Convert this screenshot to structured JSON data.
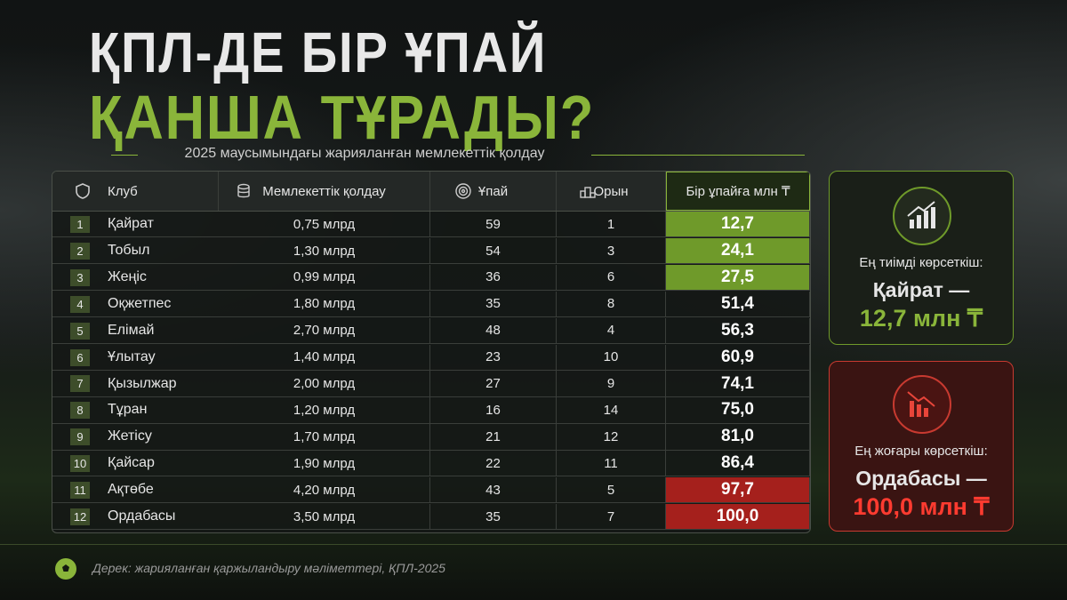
{
  "title_line1": "ҚПЛ-ДЕ БІР ҰПАЙ",
  "title_line2": "ҚАНША ТҰРАДЫ?",
  "subtitle": "2025 маусымындағы жарияланған мемлекеттік қолдау",
  "table": {
    "headers": [
      "Клуб",
      "Мемлекеттік қолдау",
      "Ұпай",
      "Орын",
      "Бір ұпайға млн ₸"
    ],
    "rows": [
      {
        "rank": 1,
        "club": "Қайрат",
        "funding": "0,75 млрд",
        "points": 59,
        "place": 1,
        "cost": "12,7",
        "color": "#6f9a2a"
      },
      {
        "rank": 2,
        "club": "Тобыл",
        "funding": "1,30 млрд",
        "points": 54,
        "place": 3,
        "cost": "24,1",
        "color": "#6f9a2a"
      },
      {
        "rank": 3,
        "club": "Жеңіс",
        "funding": "0,99 млрд",
        "points": 36,
        "place": 6,
        "cost": "27,5",
        "color": "#6f9a2a"
      },
      {
        "rank": 4,
        "club": "Оқжетпес",
        "funding": "1,80 млрд",
        "points": 35,
        "place": 8,
        "cost": "51,4"
      },
      {
        "rank": 5,
        "club": "Елімай",
        "funding": "2,70 млрд",
        "points": 48,
        "place": 4,
        "cost": "56,3"
      },
      {
        "rank": 6,
        "club": "Ұлытау",
        "funding": "1,40 млрд",
        "points": 23,
        "place": 10,
        "cost": "60,9"
      },
      {
        "rank": 7,
        "club": "Қызылжар",
        "funding": "2,00 млрд",
        "points": 27,
        "place": 9,
        "cost": "74,1"
      },
      {
        "rank": 8,
        "club": "Тұран",
        "funding": "1,20 млрд",
        "points": 16,
        "place": 14,
        "cost": "75,0"
      },
      {
        "rank": 9,
        "club": "Жетісу",
        "funding": "1,70 млрд",
        "points": 21,
        "place": 12,
        "cost": "81,0"
      },
      {
        "rank": 10,
        "club": "Қайсар",
        "funding": "1,90 млрд",
        "points": 22,
        "place": 11,
        "cost": "86,4"
      },
      {
        "rank": 11,
        "club": "Ақтөбе",
        "funding": "4,20 млрд",
        "points": 43,
        "place": 5,
        "cost": "97,7",
        "color": "#a5201c"
      },
      {
        "rank": 12,
        "club": "Ордабасы",
        "funding": "3,50 млрд",
        "points": 35,
        "place": 7,
        "cost": "100,0",
        "color": "#a5201c"
      }
    ]
  },
  "best_card": {
    "label": "Ең тиімді көрсеткіш:",
    "line1": "Қайрат —",
    "line2": "12,7 млн ₸"
  },
  "worst_card": {
    "label": "Ең жоғары көрсеткіш:",
    "line1": "Ордабасы —",
    "line2": "100,0 млн ₸"
  },
  "source": "Дерек: жарияланған қаржыландыру мәліметтері, ҚПЛ-2025"
}
